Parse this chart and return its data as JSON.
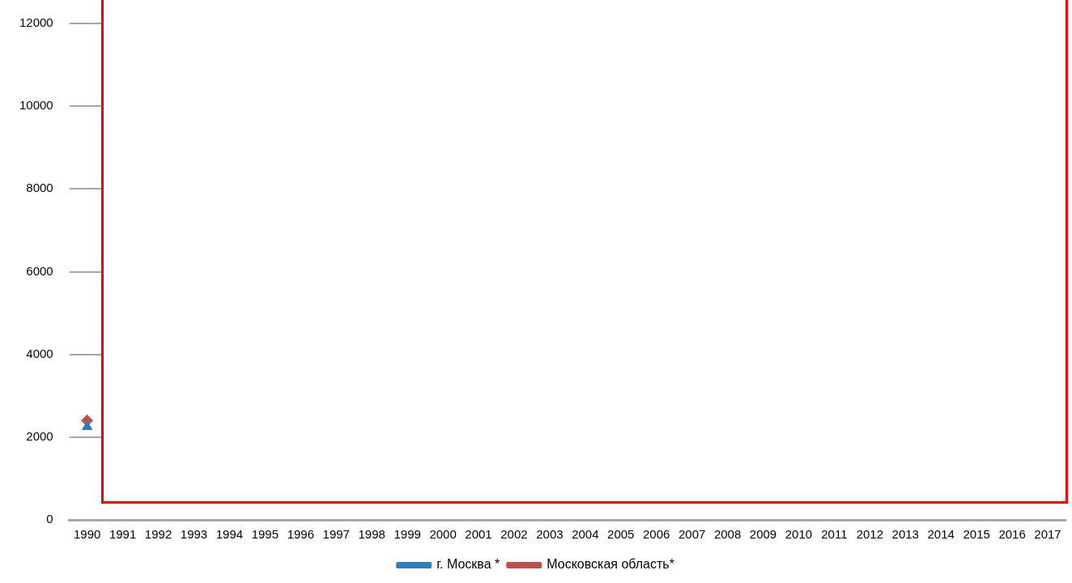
{
  "chart_data": {
    "type": "line",
    "categories": [
      "1990",
      "1991",
      "1992",
      "1993",
      "1994",
      "1995",
      "1996",
      "1997",
      "1998",
      "1999",
      "2000",
      "2001",
      "2002",
      "2003",
      "2004",
      "2005",
      "2006",
      "2007",
      "2008",
      "2009",
      "2010",
      "2011",
      "2012",
      "2013",
      "2014",
      "2015",
      "2016",
      "2017"
    ],
    "series": [
      {
        "name": "г. Москва *",
        "color": "#2e7ebf",
        "marker": "triangle",
        "values": [
          2250,
          null,
          null,
          null,
          null,
          null,
          null,
          null,
          null,
          null,
          null,
          null,
          null,
          null,
          null,
          null,
          null,
          null,
          null,
          null,
          null,
          null,
          null,
          null,
          null,
          null,
          null,
          null
        ]
      },
      {
        "name": "Московская область*",
        "color": "#c0504d",
        "marker": "diamond",
        "values": [
          2400,
          null,
          null,
          null,
          null,
          null,
          null,
          null,
          null,
          null,
          null,
          null,
          null,
          null,
          null,
          null,
          null,
          null,
          null,
          null,
          null,
          null,
          null,
          null,
          null,
          null,
          null,
          null
        ]
      }
    ],
    "ylim": [
      0,
      12000
    ],
    "yticks": [
      0,
      2000,
      4000,
      6000,
      8000,
      10000,
      12000
    ],
    "grid": "y",
    "legend": "bottom",
    "line_style": "solid"
  }
}
